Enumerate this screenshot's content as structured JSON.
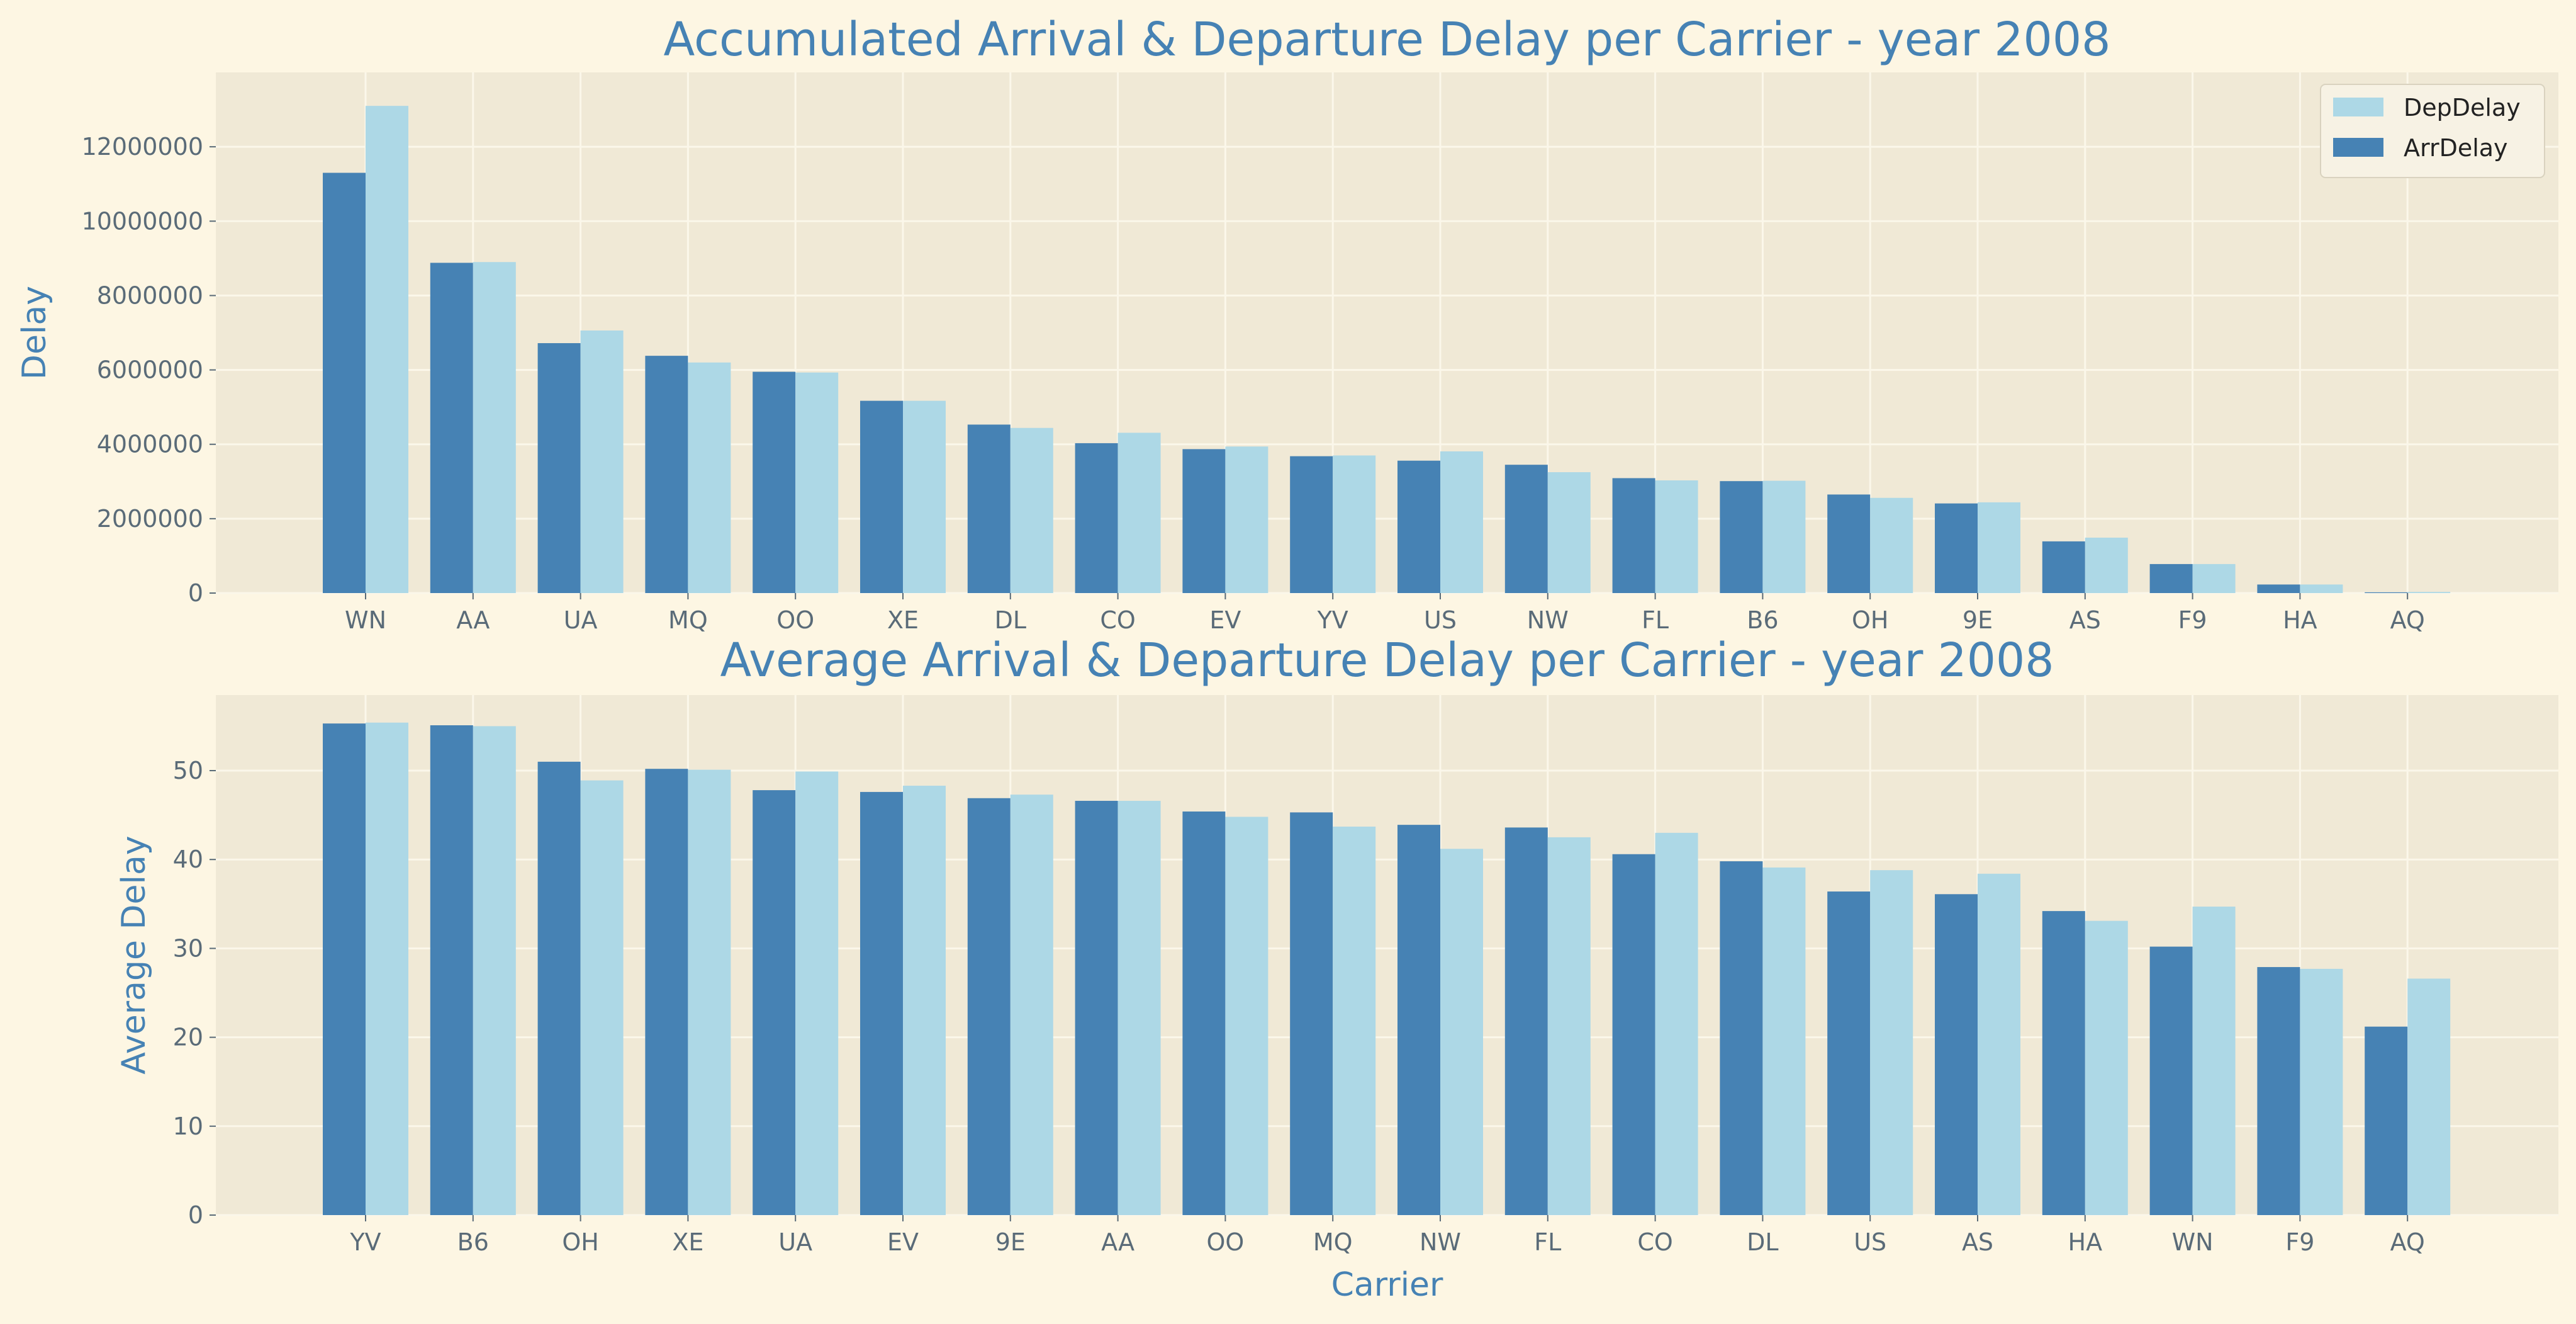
{
  "colors": {
    "background": "#fdf6e3",
    "plot_bg": "#f0e9d6",
    "grid": "#fbf7ea",
    "arr": "#4682b4",
    "dep": "#add8e6",
    "title": "#4682b4",
    "tick": "#5a6b78"
  },
  "chart_data": [
    {
      "type": "bar",
      "title": "Accumulated Arrival & Departure Delay per Carrier - year 2008",
      "xlabel": "",
      "ylabel": "Delay",
      "ylim": [
        0,
        14000000
      ],
      "yticks": [
        0,
        2000000,
        4000000,
        6000000,
        8000000,
        10000000,
        12000000
      ],
      "ytick_labels": [
        "0",
        "2000000",
        "4000000",
        "6000000",
        "8000000",
        "10000000",
        "12000000"
      ],
      "grid": true,
      "legend": "top-right",
      "categories": [
        "WN",
        "AA",
        "UA",
        "MQ",
        "OO",
        "XE",
        "DL",
        "CO",
        "EV",
        "YV",
        "US",
        "NW",
        "FL",
        "B6",
        "OH",
        "9E",
        "AS",
        "F9",
        "HA",
        "AQ"
      ],
      "series": [
        {
          "name": "ArrDelay",
          "values": [
            11300000,
            8880000,
            6720000,
            6380000,
            5950000,
            5170000,
            4530000,
            4030000,
            3870000,
            3680000,
            3560000,
            3450000,
            3090000,
            3010000,
            2650000,
            2410000,
            1390000,
            780000,
            230000,
            20000
          ]
        },
        {
          "name": "DepDelay",
          "values": [
            13100000,
            8900000,
            7060000,
            6200000,
            5930000,
            5170000,
            4440000,
            4310000,
            3940000,
            3700000,
            3810000,
            3250000,
            3030000,
            3020000,
            2560000,
            2440000,
            1490000,
            780000,
            230000,
            30000
          ]
        }
      ]
    },
    {
      "type": "bar",
      "title": "Average Arrival & Departure Delay per Carrier - year 2008",
      "xlabel": "Carrier",
      "ylabel": "Average Delay",
      "ylim": [
        0,
        58.5
      ],
      "yticks": [
        0,
        10,
        20,
        30,
        40,
        50
      ],
      "ytick_labels": [
        "0",
        "10",
        "20",
        "30",
        "40",
        "50"
      ],
      "grid": true,
      "categories": [
        "YV",
        "B6",
        "OH",
        "XE",
        "UA",
        "EV",
        "9E",
        "AA",
        "OO",
        "MQ",
        "NW",
        "FL",
        "CO",
        "DL",
        "US",
        "AS",
        "HA",
        "WN",
        "F9",
        "AQ"
      ],
      "series": [
        {
          "name": "ArrDelay",
          "values": [
            55.3,
            55.1,
            51.0,
            50.2,
            47.8,
            47.6,
            46.9,
            46.6,
            45.4,
            45.3,
            43.9,
            43.6,
            40.6,
            39.8,
            36.4,
            36.1,
            34.2,
            30.2,
            27.9,
            21.2
          ]
        },
        {
          "name": "DepDelay",
          "values": [
            55.4,
            55.0,
            48.9,
            50.1,
            49.9,
            48.3,
            47.3,
            46.6,
            44.8,
            43.7,
            41.2,
            42.5,
            43.0,
            39.1,
            38.8,
            38.4,
            33.1,
            34.7,
            27.7,
            26.6
          ]
        }
      ]
    }
  ]
}
